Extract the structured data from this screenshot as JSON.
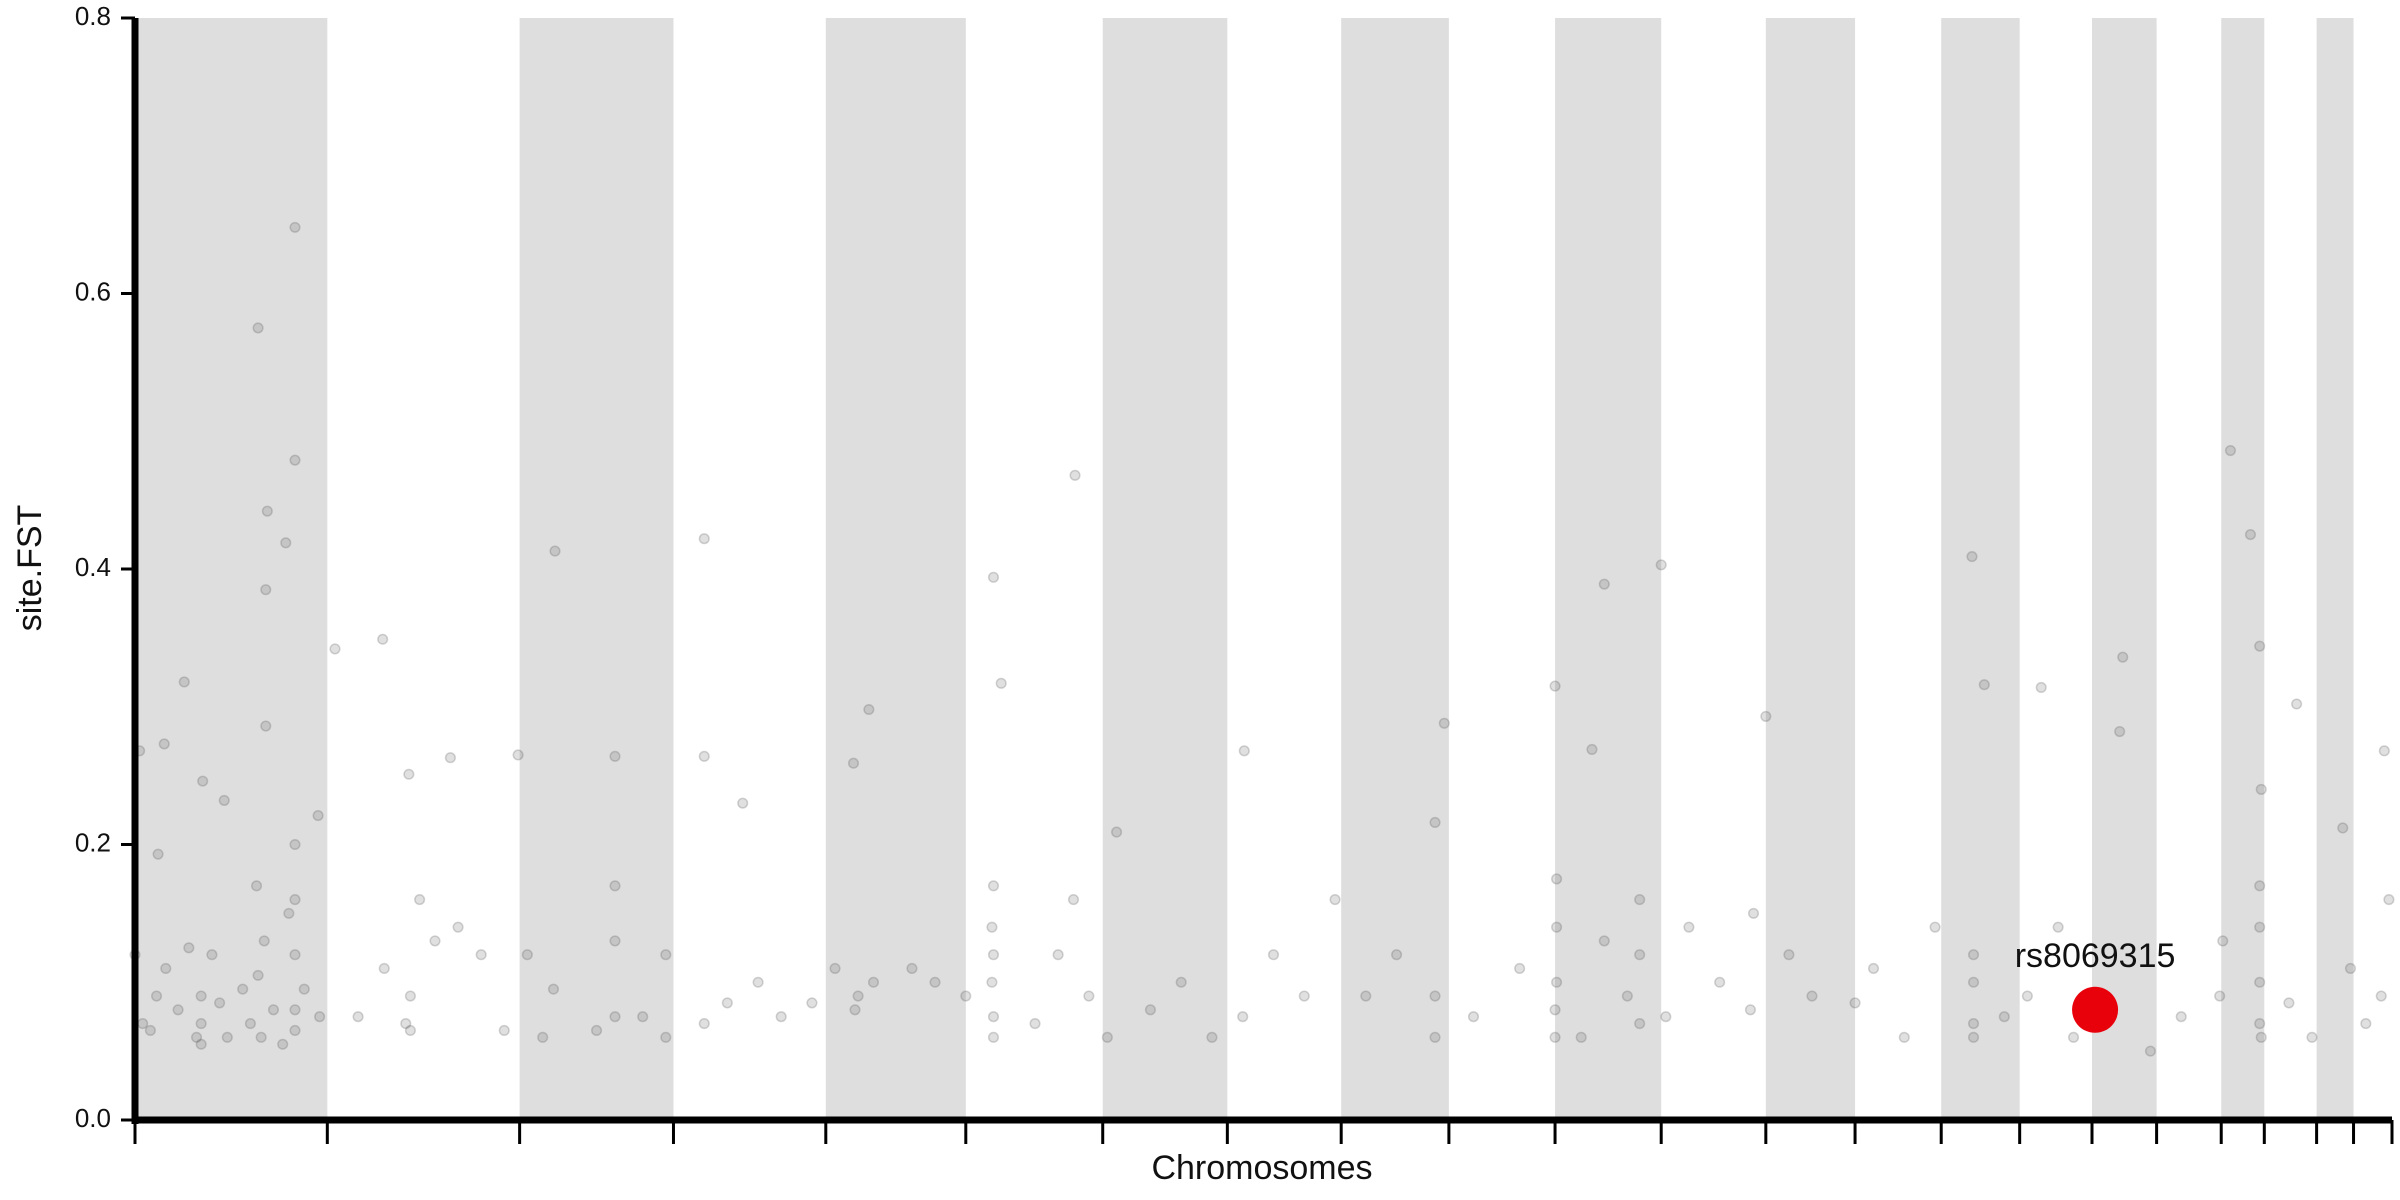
{
  "chart_data": {
    "type": "scatter",
    "xlabel": "Chromosomes",
    "ylabel": "site.FST",
    "xlim": [
      0,
      1467
    ],
    "ylim": [
      0,
      0.8
    ],
    "yticks": [
      {
        "value": 0,
        "label": "0.0"
      },
      0.2,
      0.4,
      0.6,
      0.8
    ],
    "xticks": [
      0,
      125,
      250,
      350,
      449,
      540,
      629,
      710,
      784,
      854,
      923,
      992,
      1060,
      1118,
      1174,
      1225,
      1272,
      1314,
      1356,
      1384,
      1418,
      1442,
      1467
    ],
    "shade_alternate": true,
    "shade_color": "#dedede",
    "color": "#555555",
    "x": [
      80,
      104,
      104,
      86,
      85,
      98,
      85,
      32,
      3,
      19,
      15,
      44,
      58,
      119,
      130,
      161,
      178,
      205,
      273,
      312,
      249,
      370,
      370,
      395,
      477,
      467,
      558,
      563,
      611,
      638,
      721,
      851,
      845,
      955,
      992,
      923,
      947,
      1060,
      1194,
      1202,
      1239,
      1292,
      1362,
      1375,
      1381,
      1405,
      1462,
      1435,
      1290,
      0,
      5,
      10,
      14,
      20,
      28,
      35,
      40,
      43,
      43,
      43,
      50,
      55,
      60,
      70,
      75,
      79,
      80,
      82,
      84,
      90,
      96,
      100,
      104,
      104,
      104,
      104,
      104,
      110,
      120,
      145,
      162,
      176,
      179,
      179,
      185,
      195,
      210,
      225,
      240,
      255,
      265,
      272,
      300,
      312,
      312,
      312,
      330,
      345,
      345,
      370,
      385,
      405,
      420,
      440,
      455,
      468,
      470,
      480,
      505,
      520,
      540,
      557,
      557,
      558,
      558,
      558,
      558,
      585,
      600,
      610,
      620,
      632,
      660,
      680,
      700,
      720,
      740,
      760,
      780,
      800,
      820,
      845,
      845,
      870,
      900,
      923,
      923,
      924,
      924,
      924,
      940,
      955,
      970,
      978,
      978,
      978,
      995,
      1010,
      1030,
      1050,
      1052,
      1075,
      1090,
      1118,
      1130,
      1150,
      1170,
      1195,
      1195,
      1195,
      1195,
      1215,
      1230,
      1250,
      1260,
      1310,
      1330,
      1355,
      1357,
      1381,
      1381,
      1381,
      1381,
      1382,
      1382,
      1400,
      1415,
      1440,
      1450,
      1460,
      1465
    ],
    "values": [
      0.575,
      0.648,
      0.479,
      0.442,
      0.385,
      0.419,
      0.286,
      0.318,
      0.268,
      0.273,
      0.193,
      0.246,
      0.232,
      0.221,
      0.342,
      0.349,
      0.251,
      0.263,
      0.413,
      0.264,
      0.265,
      0.422,
      0.264,
      0.23,
      0.298,
      0.259,
      0.394,
      0.317,
      0.468,
      0.209,
      0.268,
      0.288,
      0.216,
      0.389,
      0.403,
      0.315,
      0.269,
      0.293,
      0.409,
      0.316,
      0.314,
      0.336,
      0.486,
      0.425,
      0.344,
      0.302,
      0.268,
      0.212,
      0.282,
      0.12,
      0.07,
      0.065,
      0.09,
      0.11,
      0.08,
      0.125,
      0.06,
      0.09,
      0.07,
      0.055,
      0.12,
      0.085,
      0.06,
      0.095,
      0.07,
      0.17,
      0.105,
      0.06,
      0.13,
      0.08,
      0.055,
      0.15,
      0.2,
      0.12,
      0.08,
      0.065,
      0.16,
      0.095,
      0.075,
      0.075,
      0.11,
      0.07,
      0.065,
      0.09,
      0.16,
      0.13,
      0.14,
      0.12,
      0.065,
      0.12,
      0.06,
      0.095,
      0.065,
      0.17,
      0.13,
      0.075,
      0.075,
      0.12,
      0.06,
      0.07,
      0.085,
      0.1,
      0.075,
      0.085,
      0.11,
      0.08,
      0.09,
      0.1,
      0.11,
      0.1,
      0.09,
      0.14,
      0.1,
      0.075,
      0.06,
      0.17,
      0.12,
      0.07,
      0.12,
      0.16,
      0.09,
      0.06,
      0.08,
      0.1,
      0.06,
      0.075,
      0.12,
      0.09,
      0.16,
      0.09,
      0.12,
      0.06,
      0.09,
      0.075,
      0.11,
      0.06,
      0.08,
      0.1,
      0.175,
      0.14,
      0.06,
      0.13,
      0.09,
      0.07,
      0.12,
      0.16,
      0.075,
      0.14,
      0.1,
      0.08,
      0.15,
      0.12,
      0.09,
      0.085,
      0.11,
      0.06,
      0.14,
      0.07,
      0.1,
      0.12,
      0.06,
      0.075,
      0.09,
      0.14,
      0.06,
      0.05,
      0.075,
      0.09,
      0.13,
      0.07,
      0.1,
      0.14,
      0.17,
      0.06,
      0.24,
      0.085,
      0.06,
      0.11,
      0.07,
      0.09,
      0.16
    ],
    "annotations": [
      {
        "label": "rs8069315",
        "x": 1274,
        "y": 0.08,
        "color": "#e8000b"
      }
    ]
  }
}
